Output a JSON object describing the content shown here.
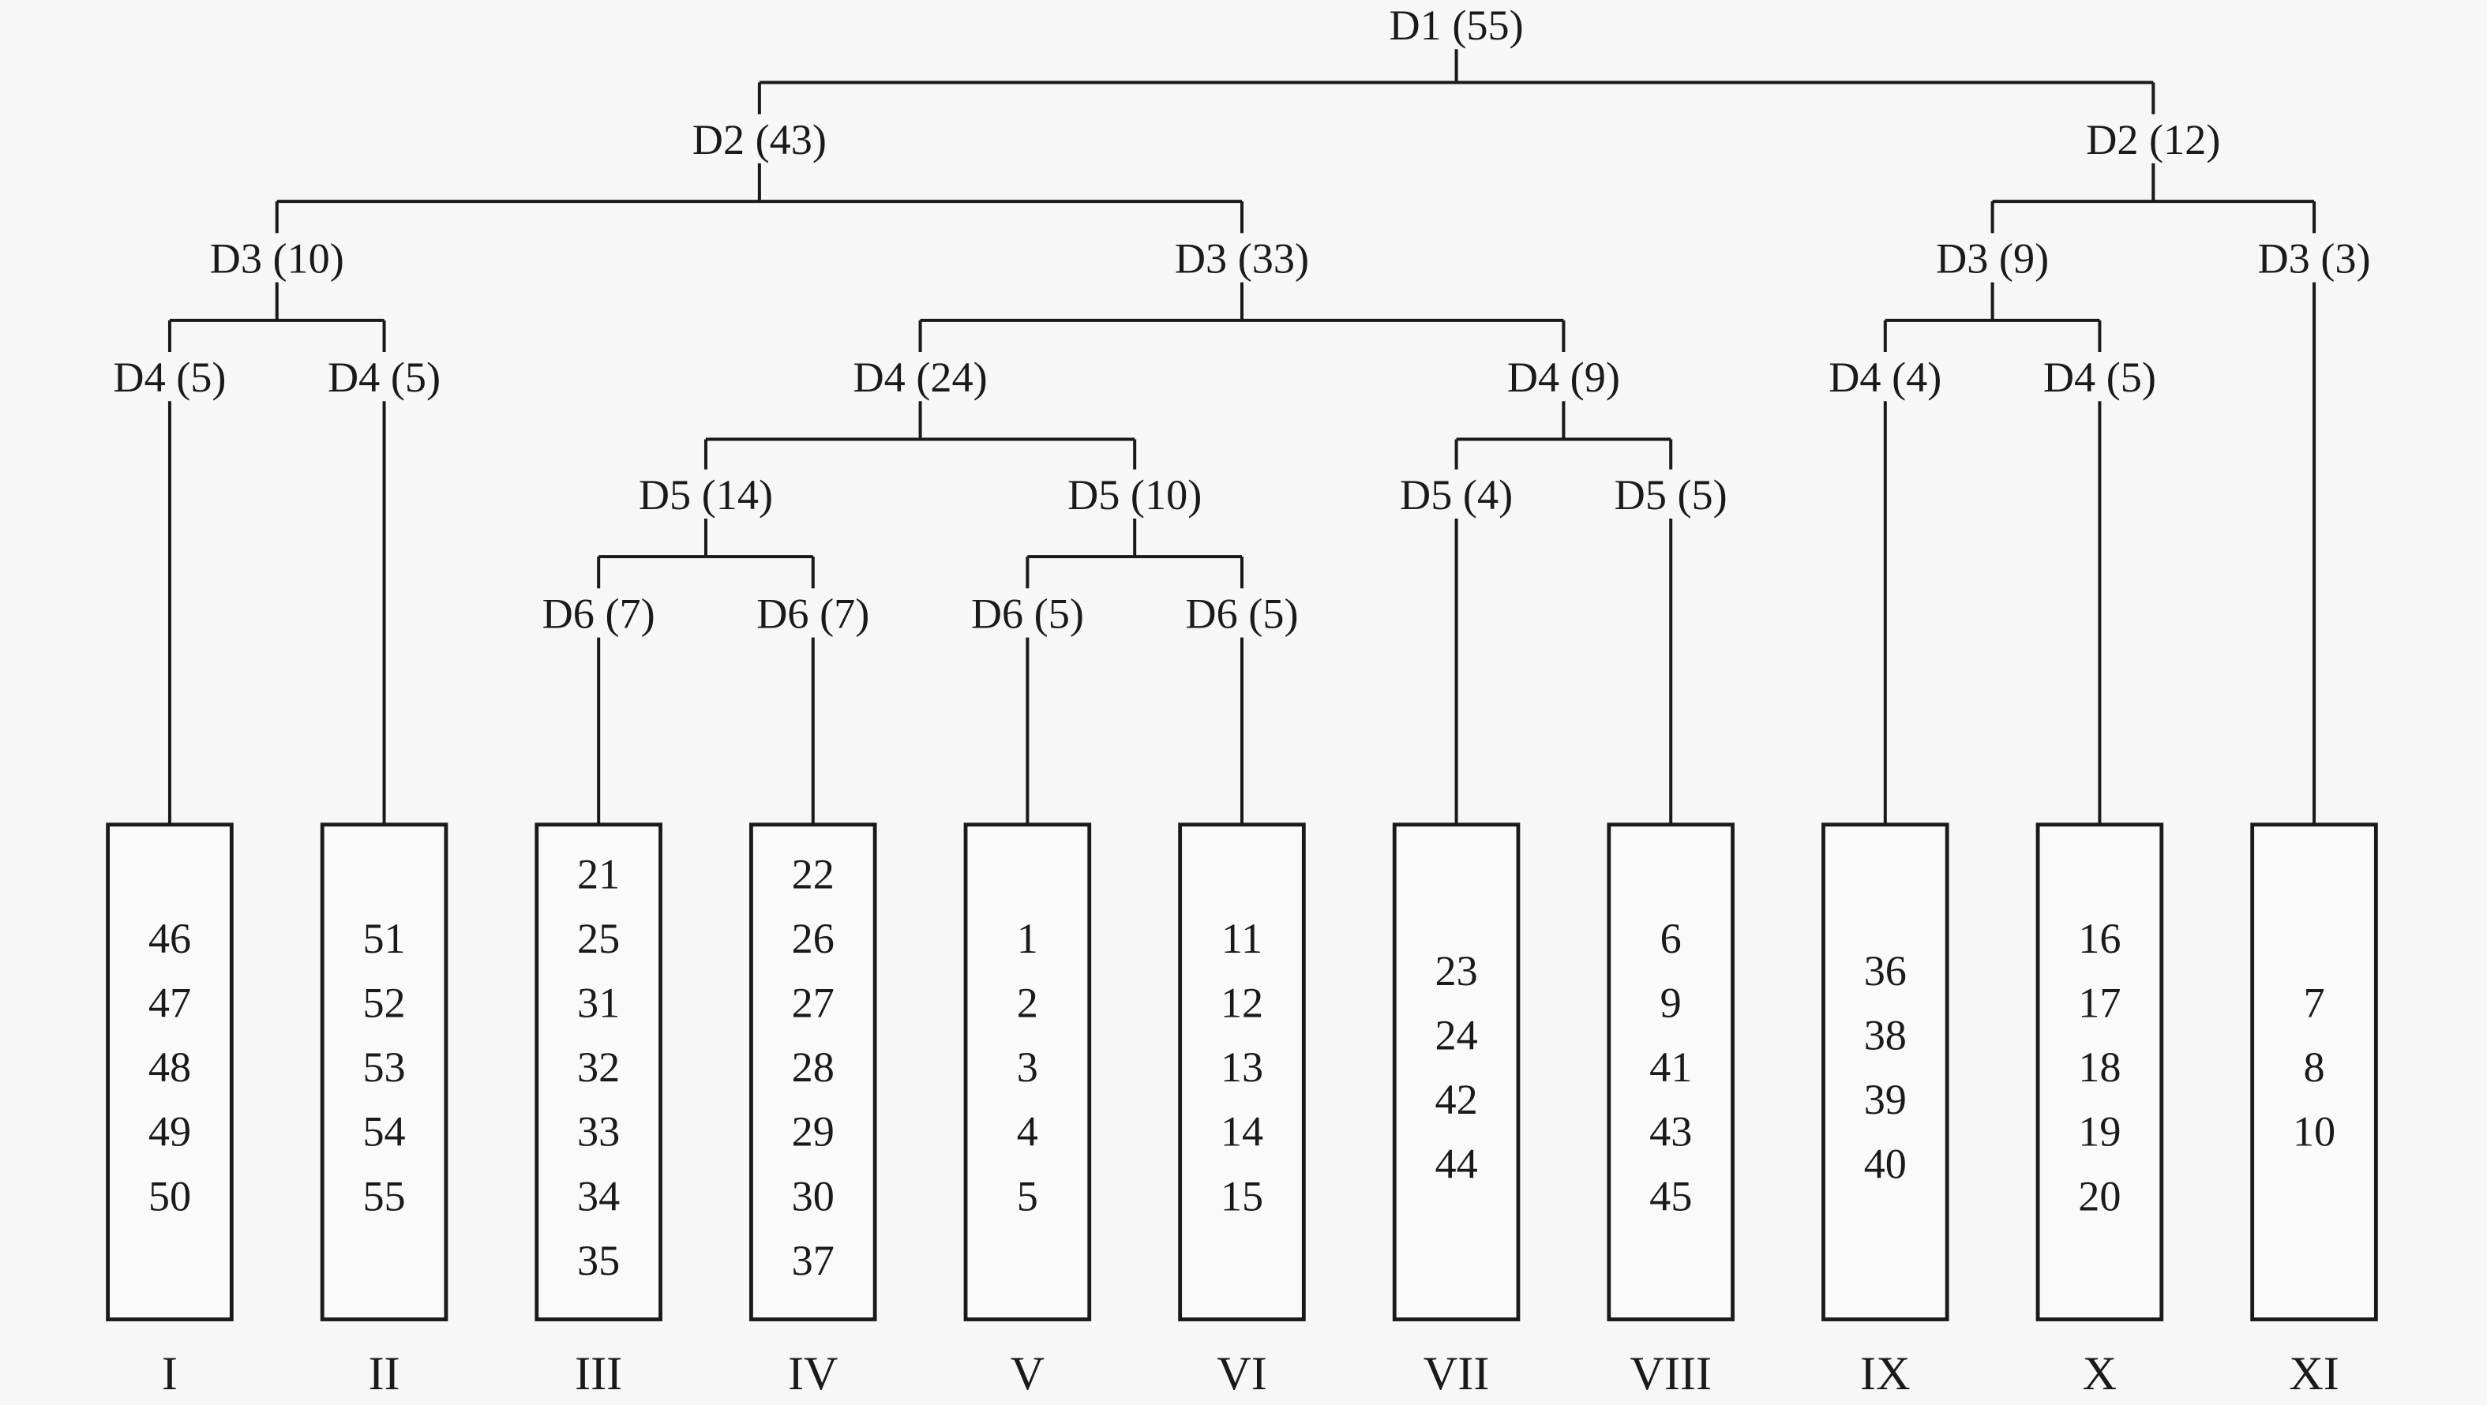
{
  "colors": {
    "background": "#f7f7f7",
    "ink": "#1a1a1a"
  },
  "tree": {
    "label": "D1 (55)",
    "children": [
      {
        "label": "D2 (43)",
        "children": [
          {
            "label": "D3 (10)",
            "children": [
              {
                "label": "D4 (5)",
                "group": {
                  "numeral": "I",
                  "items": [
                    "46",
                    "47",
                    "48",
                    "49",
                    "50"
                  ]
                }
              },
              {
                "label": "D4 (5)",
                "group": {
                  "numeral": "II",
                  "items": [
                    "51",
                    "52",
                    "53",
                    "54",
                    "55"
                  ]
                }
              }
            ]
          },
          {
            "label": "D3 (33)",
            "children": [
              {
                "label": "D4 (24)",
                "children": [
                  {
                    "label": "D5 (14)",
                    "children": [
                      {
                        "label": "D6 (7)",
                        "group": {
                          "numeral": "III",
                          "items": [
                            "21",
                            "25",
                            "31",
                            "32",
                            "33",
                            "34",
                            "35"
                          ]
                        }
                      },
                      {
                        "label": "D6 (7)",
                        "group": {
                          "numeral": "IV",
                          "items": [
                            "22",
                            "26",
                            "27",
                            "28",
                            "29",
                            "30",
                            "37"
                          ]
                        }
                      }
                    ]
                  },
                  {
                    "label": "D5 (10)",
                    "children": [
                      {
                        "label": "D6 (5)",
                        "group": {
                          "numeral": "V",
                          "items": [
                            "1",
                            "2",
                            "3",
                            "4",
                            "5"
                          ]
                        }
                      },
                      {
                        "label": "D6 (5)",
                        "group": {
                          "numeral": "VI",
                          "items": [
                            "11",
                            "12",
                            "13",
                            "14",
                            "15"
                          ]
                        }
                      }
                    ]
                  }
                ]
              },
              {
                "label": "D4 (9)",
                "children": [
                  {
                    "label": "D5 (4)",
                    "group": {
                      "numeral": "VII",
                      "items": [
                        "23",
                        "24",
                        "42",
                        "44"
                      ]
                    }
                  },
                  {
                    "label": "D5 (5)",
                    "group": {
                      "numeral": "VIII",
                      "items": [
                        "6",
                        "9",
                        "41",
                        "43",
                        "45"
                      ]
                    }
                  }
                ]
              }
            ]
          }
        ]
      },
      {
        "label": "D2 (12)",
        "children": [
          {
            "label": "D3 (9)",
            "children": [
              {
                "label": "D4 (4)",
                "group": {
                  "numeral": "IX",
                  "items": [
                    "36",
                    "38",
                    "39",
                    "40"
                  ]
                }
              },
              {
                "label": "D4 (5)",
                "group": {
                  "numeral": "X",
                  "items": [
                    "16",
                    "17",
                    "18",
                    "19",
                    "20"
                  ]
                }
              }
            ]
          },
          {
            "label": "D3 (3)",
            "group": {
              "numeral": "XI",
              "items": [
                "7",
                "8",
                "10"
              ]
            }
          }
        ]
      }
    ]
  }
}
